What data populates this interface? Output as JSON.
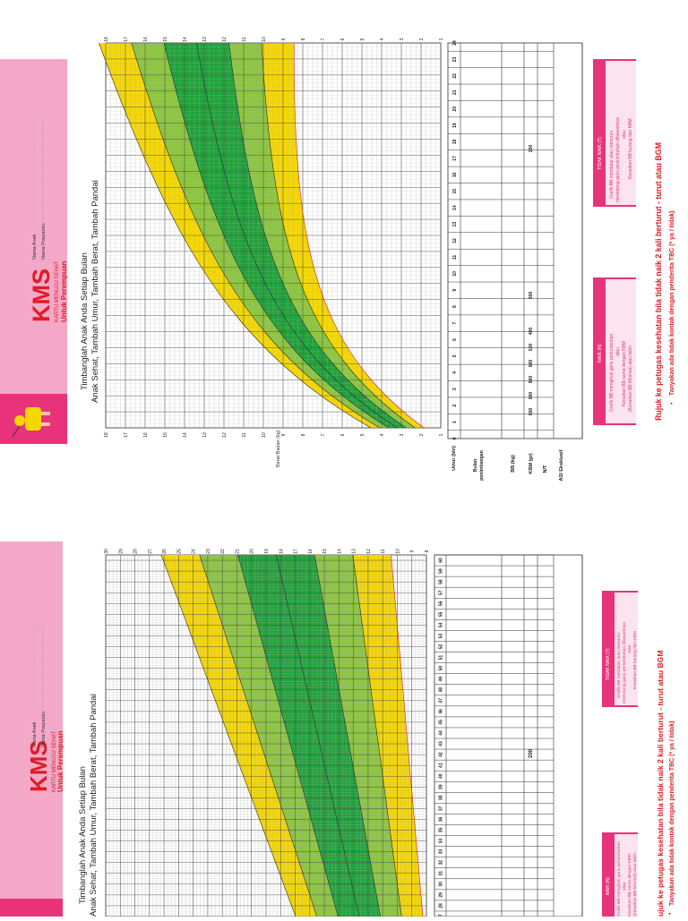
{
  "brand": {
    "logo_text": "KMS",
    "tagline": "KARTU MENUJU SEHAT",
    "subtitle": "Untuk Perempuan"
  },
  "form": {
    "name_label": "Nama Anak",
    "posyandu_label": "Nama Posyandu",
    "colon": ":"
  },
  "headline": {
    "line1": "Timbanglah Anak Anda Setiap Bulan",
    "line2": "Anak Sehat, Tambah Umur, Tambah Berat, Tambah Pandai"
  },
  "rows": {
    "umur": "Umur (bln)",
    "bulan_penimbangan_1": "Bulan",
    "bulan_penimbangan_2": "penimbangan",
    "bb": "BB (kg)",
    "kbm": "KBM (gr)",
    "nt": "N/T",
    "asi": "ASI Eksklusif"
  },
  "axis": {
    "berat_badan": "Berat Badan (kg)"
  },
  "kbm_values": {
    "bottom_page": [
      "800",
      "900",
      "800",
      "600",
      "500",
      "400",
      "300",
      "200"
    ],
    "top_page": [
      "200"
    ]
  },
  "naik": {
    "title": "NAIK (N)",
    "l1": "Grafik BB mengikuti garis pertumbuhan",
    "l2": "atau",
    "l3": "Kenaikan BB sama dengan KBM",
    "l4": "(Kenaikan BB Minimal) atau lebih"
  },
  "tidak_naik": {
    "title": "TIDAK NAIK (T)",
    "l1": "Grafik BB mendatar atau menurun",
    "l2": "memotong garis pertumbuhan dibawahnya",
    "l3": "atau",
    "l4": "Kenaikan BB kurang dari KBM"
  },
  "footer": {
    "rujuk": "Rujuk ke petugas kesehatan bila tidak naik 2 kali berturut - turut atau BGM",
    "tbc": "Tanyakan ada tidak kontak dengan penderita TBC (* ya / tidak)",
    "rujuk_top_partial": "ujuk ke petugas kesehatan bila tidak naik 2 kali berturut - turut atau BGM"
  },
  "bottom_page": {
    "months": [
      "0",
      "1",
      "2",
      "3",
      "4",
      "5",
      "6",
      "7",
      "8",
      "9",
      "10",
      "11",
      "12",
      "13",
      "14",
      "15",
      "16",
      "17",
      "18",
      "19",
      "20",
      "21",
      "22",
      "23",
      "24"
    ],
    "weights": [
      "1",
      "2",
      "3",
      "4",
      "5",
      "6",
      "7",
      "8",
      "9",
      "10",
      "11",
      "12",
      "13",
      "14",
      "15",
      "16",
      "17",
      "18"
    ]
  },
  "top_page": {
    "months": [
      "27",
      "28",
      "29",
      "30",
      "31",
      "32",
      "33",
      "34",
      "35",
      "36",
      "37",
      "38",
      "39",
      "40",
      "41",
      "42",
      "43",
      "44",
      "45",
      "46",
      "47",
      "48",
      "49",
      "50",
      "51",
      "52",
      "53",
      "54",
      "55",
      "56",
      "57",
      "58",
      "59",
      "60"
    ],
    "weights": [
      "8",
      "9",
      "10",
      "11",
      "12",
      "13",
      "14",
      "15",
      "16",
      "17",
      "18",
      "19",
      "20",
      "21",
      "22",
      "23",
      "24",
      "25",
      "26",
      "27",
      "28",
      "29",
      "30"
    ]
  },
  "colors": {
    "pink": "#f4a8c8",
    "magenta": "#e8337a",
    "red": "#e01b24",
    "yellow": "#f6d800",
    "light_green": "#8cc63f",
    "dark_green": "#1fa33a"
  }
}
